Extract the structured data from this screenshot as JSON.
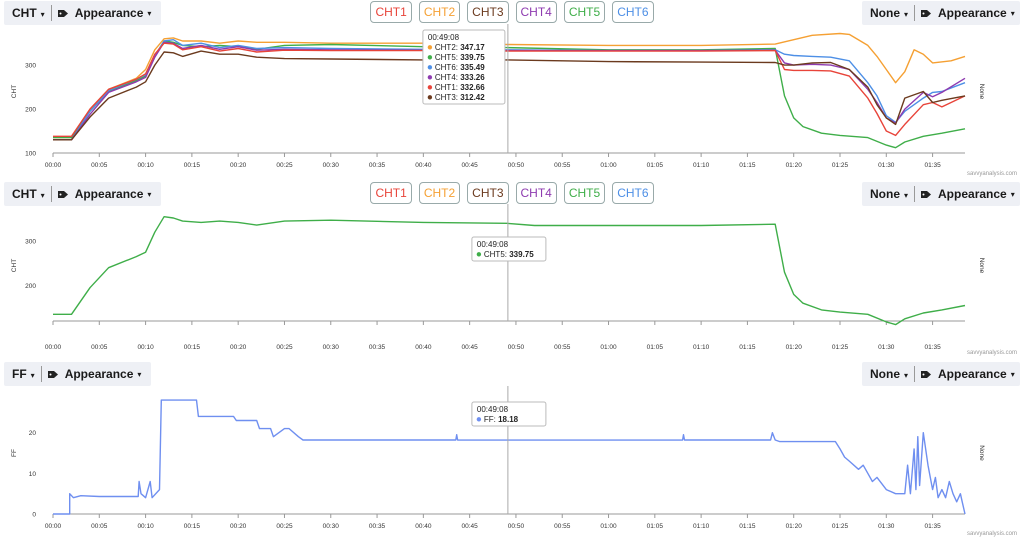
{
  "x_ticks": [
    "00:00",
    "00:05",
    "00:10",
    "00:15",
    "00:20",
    "00:25",
    "00:30",
    "00:35",
    "00:40",
    "00:45",
    "00:50",
    "00:55",
    "01:00",
    "01:05",
    "01:10",
    "01:15",
    "01:20",
    "01:25",
    "01:30",
    "01:35"
  ],
  "cursor_time": "00:49:08",
  "watermark": "savvyanalysis.com",
  "colors": {
    "CHT1": "#e8443a",
    "CHT2": "#f5a033",
    "CHT3": "#6b3a1e",
    "CHT4": "#8e3bb0",
    "CHT5": "#3fae49",
    "CHT6": "#4d8fe6",
    "FF": "#6f8ff0"
  },
  "buttons": [
    "CHT1",
    "CHT2",
    "CHT3",
    "CHT4",
    "CHT5",
    "CHT6"
  ],
  "panels": [
    {
      "left_select": "CHT",
      "appearance_label": "Appearance",
      "right_select": "None",
      "y_label": "CHT",
      "right_label": "None",
      "show_buttons": true,
      "tooltip": {
        "time": "00:49:08",
        "rows": [
          {
            "series": "CHT2",
            "value": "347.17"
          },
          {
            "series": "CHT5",
            "value": "339.75"
          },
          {
            "series": "CHT6",
            "value": "335.49"
          },
          {
            "series": "CHT4",
            "value": "333.26"
          },
          {
            "series": "CHT1",
            "value": "332.66"
          },
          {
            "series": "CHT3",
            "value": "312.42"
          }
        ]
      }
    },
    {
      "left_select": "CHT",
      "appearance_label": "Appearance",
      "right_select": "None",
      "y_label": "CHT",
      "right_label": "None",
      "show_buttons": true,
      "tooltip": {
        "time": "00:49:08",
        "rows": [
          {
            "series": "CHT5",
            "value": "339.75"
          }
        ]
      }
    },
    {
      "left_select": "FF",
      "appearance_label": "Appearance",
      "right_select": "None",
      "y_label": "FF",
      "right_label": "None",
      "show_buttons": false,
      "tooltip": {
        "time": "00:49:08",
        "rows": [
          {
            "series": "FF",
            "value": "18.18"
          }
        ]
      }
    }
  ],
  "chart_data": [
    {
      "type": "line",
      "xlabel": "",
      "ylabel": "CHT",
      "xlim": [
        0,
        98.5
      ],
      "ylim": [
        100,
        380
      ],
      "y_ticks": [
        100,
        200,
        300
      ],
      "x_unit": "minutes",
      "series": [
        {
          "name": "CHT2",
          "x": [
            0,
            2,
            4,
            6,
            9,
            10,
            11,
            12,
            13,
            14,
            16,
            18,
            20,
            22,
            25,
            30,
            40,
            49,
            60,
            70,
            78,
            80,
            82,
            85,
            86,
            88,
            89,
            90,
            91,
            92,
            93,
            94,
            95,
            97,
            98.5
          ],
          "y": [
            135,
            135,
            200,
            245,
            270,
            290,
            335,
            360,
            362,
            355,
            355,
            350,
            355,
            352,
            352,
            350,
            350,
            347,
            345,
            345,
            348,
            358,
            368,
            372,
            370,
            345,
            320,
            290,
            260,
            285,
            335,
            325,
            305,
            310,
            320
          ]
        },
        {
          "name": "CHT5",
          "x": [
            0,
            2,
            4,
            6,
            9,
            10,
            11,
            12,
            13,
            14,
            16,
            18,
            20,
            22,
            25,
            30,
            40,
            49,
            60,
            70,
            78,
            79,
            80,
            81,
            83,
            85,
            88,
            90,
            91,
            92,
            94,
            96,
            98.5
          ],
          "y": [
            135,
            135,
            195,
            240,
            265,
            275,
            320,
            355,
            352,
            345,
            342,
            345,
            342,
            336,
            345,
            347,
            342,
            340,
            335,
            335,
            338,
            230,
            180,
            160,
            145,
            140,
            135,
            118,
            112,
            125,
            138,
            145,
            155
          ]
        },
        {
          "name": "CHT6",
          "x": [
            0,
            2,
            4,
            6,
            9,
            10,
            11,
            12,
            13,
            14,
            16,
            18,
            20,
            22,
            25,
            30,
            40,
            49,
            60,
            70,
            78,
            79,
            80,
            82,
            84,
            86,
            88,
            89,
            90,
            91,
            92,
            94,
            95,
            96,
            98.5
          ],
          "y": [
            130,
            130,
            195,
            242,
            268,
            278,
            322,
            355,
            358,
            345,
            350,
            340,
            345,
            338,
            340,
            338,
            336,
            335,
            333,
            333,
            335,
            325,
            322,
            320,
            318,
            310,
            260,
            230,
            185,
            170,
            195,
            225,
            238,
            240,
            260
          ]
        },
        {
          "name": "CHT4",
          "x": [
            0,
            2,
            4,
            6,
            9,
            10,
            11,
            12,
            13,
            14,
            16,
            18,
            20,
            22,
            25,
            30,
            40,
            49,
            60,
            70,
            78,
            79,
            80,
            82,
            84,
            86,
            88,
            89,
            90,
            91,
            92,
            94,
            95,
            96,
            98.5
          ],
          "y": [
            130,
            130,
            188,
            238,
            262,
            272,
            318,
            352,
            350,
            338,
            345,
            336,
            342,
            334,
            336,
            335,
            334,
            333,
            333,
            333,
            334,
            305,
            300,
            302,
            300,
            290,
            245,
            215,
            180,
            168,
            200,
            238,
            228,
            238,
            270
          ]
        },
        {
          "name": "CHT1",
          "x": [
            0,
            2,
            4,
            6,
            9,
            10,
            11,
            12,
            13,
            14,
            16,
            18,
            20,
            22,
            25,
            30,
            40,
            49,
            60,
            70,
            78,
            79,
            80,
            82,
            84,
            86,
            88,
            89,
            90,
            91,
            92,
            94,
            95,
            96,
            98.5
          ],
          "y": [
            138,
            138,
            200,
            245,
            268,
            280,
            325,
            350,
            348,
            335,
            342,
            332,
            338,
            330,
            334,
            333,
            333,
            332,
            332,
            332,
            333,
            290,
            288,
            288,
            287,
            275,
            225,
            190,
            150,
            140,
            165,
            210,
            215,
            205,
            230
          ]
        },
        {
          "name": "CHT3",
          "x": [
            0,
            2,
            4,
            6,
            9,
            10,
            11,
            12,
            13,
            14,
            16,
            18,
            20,
            22,
            25,
            30,
            40,
            49,
            60,
            70,
            78,
            79,
            80,
            82,
            84,
            86,
            88,
            89,
            90,
            91,
            92,
            94,
            95,
            96,
            98.5
          ],
          "y": [
            130,
            130,
            182,
            225,
            250,
            262,
            300,
            330,
            328,
            320,
            332,
            325,
            325,
            318,
            315,
            314,
            312,
            312,
            308,
            307,
            306,
            300,
            300,
            305,
            306,
            290,
            250,
            210,
            180,
            165,
            225,
            240,
            215,
            220,
            230
          ]
        }
      ]
    },
    {
      "type": "line",
      "xlabel": "",
      "ylabel": "CHT",
      "xlim": [
        0,
        98.5
      ],
      "ylim": [
        120,
        370
      ],
      "y_ticks": [
        200,
        300
      ],
      "x_unit": "minutes",
      "series": [
        {
          "name": "CHT5",
          "x": [
            0,
            2,
            4,
            6,
            9,
            10,
            11,
            12,
            13,
            14,
            16,
            18,
            20,
            22,
            25,
            30,
            40,
            49,
            52,
            60,
            70,
            78,
            79,
            80,
            81,
            83,
            85,
            88,
            90,
            91,
            92,
            94,
            96,
            98.5
          ],
          "y": [
            135,
            135,
            195,
            240,
            265,
            275,
            320,
            355,
            352,
            345,
            342,
            345,
            342,
            336,
            345,
            347,
            342,
            340,
            335,
            335,
            335,
            338,
            230,
            180,
            160,
            145,
            140,
            135,
            118,
            112,
            125,
            138,
            145,
            155
          ]
        }
      ]
    },
    {
      "type": "line",
      "xlabel": "",
      "ylabel": "FF",
      "xlim": [
        0,
        98.5
      ],
      "ylim": [
        0,
        30
      ],
      "y_ticks": [
        0,
        10,
        20
      ],
      "x_unit": "minutes",
      "series": [
        {
          "name": "FF",
          "x": [
            0,
            1.8,
            1.8,
            2.2,
            3,
            5,
            9.2,
            9.3,
            9.5,
            10,
            10.5,
            10.7,
            11.5,
            11.7,
            15.5,
            15.7,
            19.5,
            19.8,
            22,
            22.3,
            23.5,
            23.8,
            25,
            25.5,
            26.5,
            27,
            43.5,
            43.6,
            43.7,
            50,
            68,
            68.1,
            68.2,
            77.5,
            77.7,
            78,
            78.5,
            84.5,
            85,
            85.5,
            86,
            87,
            87.5,
            88,
            88.5,
            89,
            90,
            91,
            92,
            92.3,
            92.6,
            93,
            93.2,
            93.4,
            93.6,
            94,
            94.5,
            95,
            95.3,
            95.6,
            96,
            96.4,
            96.8,
            97.2,
            97.6,
            98,
            98.2,
            98.5
          ],
          "y": [
            0,
            0,
            5,
            4,
            4.5,
            4.3,
            4.3,
            8,
            5,
            4,
            8,
            4,
            6,
            28,
            28,
            24,
            24,
            23,
            23,
            21,
            21,
            19,
            21,
            21,
            19,
            18.2,
            18.2,
            19.5,
            18.2,
            18.18,
            18.2,
            19.5,
            18.2,
            18.2,
            20,
            18.2,
            17.8,
            17.8,
            16,
            14,
            13,
            11,
            12,
            10,
            8,
            9,
            6,
            5,
            5,
            12,
            5,
            16,
            6,
            19,
            7,
            20,
            12,
            6,
            9,
            4,
            6,
            4,
            8,
            5,
            3,
            5,
            3,
            0
          ]
        }
      ]
    }
  ]
}
